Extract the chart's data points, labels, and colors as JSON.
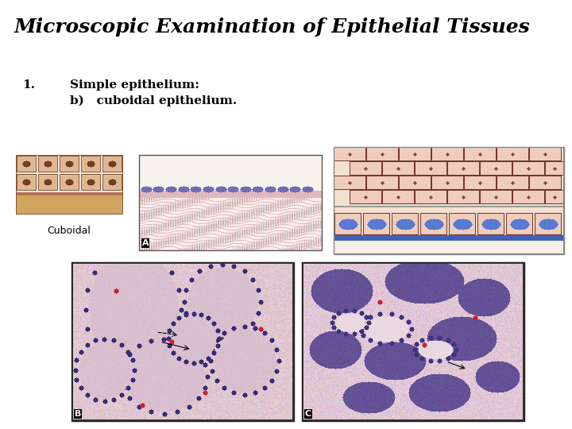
{
  "title": "Microscopic Examination of Epithelial Tissues",
  "title_fontsize": 18,
  "title_fontweight": "bold",
  "background_color": "#ffffff",
  "text_color": "#000000",
  "label1_text": "1.",
  "label1_fontsize": 11,
  "label2_text": "Simple epithelium:",
  "label2_fontsize": 11,
  "label3_text": "b)   cuboidal epithelium.",
  "label3_fontsize": 11,
  "cuboidal_label": "Cuboidal",
  "img_positions": {
    "diagram_3d": [
      20,
      195,
      155,
      270
    ],
    "img_A": [
      175,
      195,
      405,
      315
    ],
    "diagram_2d": [
      420,
      185,
      710,
      320
    ],
    "img_B": [
      90,
      330,
      370,
      530
    ],
    "img_C": [
      380,
      330,
      660,
      530
    ]
  }
}
